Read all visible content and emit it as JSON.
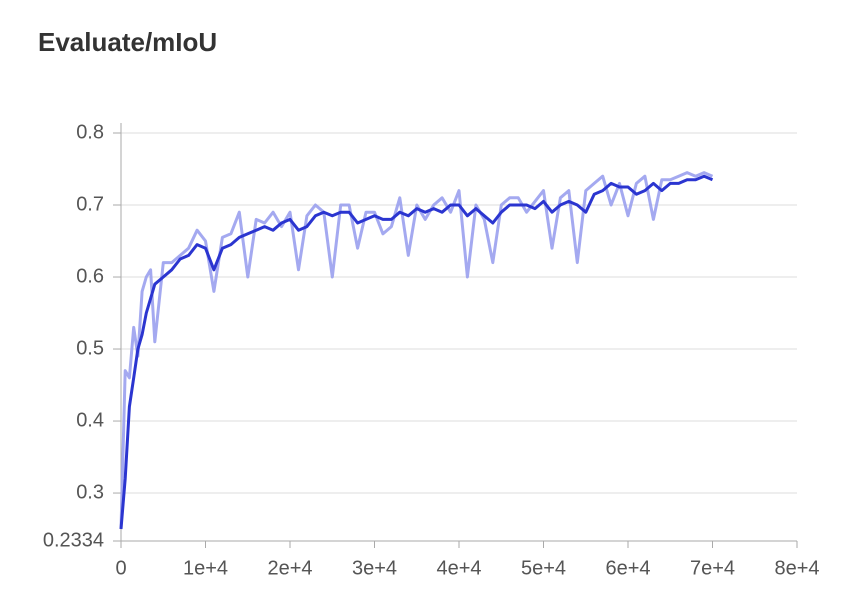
{
  "chart_data": {
    "type": "line",
    "title": "Evaluate/mIoU",
    "x": [
      0,
      500,
      1000,
      1500,
      2000,
      2500,
      3000,
      3500,
      4000,
      5000,
      6000,
      7000,
      8000,
      9000,
      10000,
      11000,
      12000,
      13000,
      14000,
      15000,
      16000,
      17000,
      18000,
      19000,
      20000,
      21000,
      22000,
      23000,
      24000,
      25000,
      26000,
      27000,
      28000,
      29000,
      30000,
      31000,
      32000,
      33000,
      34000,
      35000,
      36000,
      37000,
      38000,
      39000,
      40000,
      41000,
      42000,
      43000,
      44000,
      45000,
      46000,
      47000,
      48000,
      49000,
      50000,
      51000,
      52000,
      53000,
      54000,
      55000,
      56000,
      57000,
      58000,
      59000,
      60000,
      61000,
      62000,
      63000,
      64000,
      65000,
      66000,
      67000,
      68000,
      69000,
      70000
    ],
    "series": [
      {
        "color": "#9aa0ee",
        "values": [
          0.25,
          0.47,
          0.46,
          0.53,
          0.49,
          0.58,
          0.6,
          0.61,
          0.51,
          0.62,
          0.62,
          0.63,
          0.64,
          0.665,
          0.65,
          0.58,
          0.655,
          0.66,
          0.69,
          0.6,
          0.68,
          0.675,
          0.69,
          0.67,
          0.69,
          0.61,
          0.685,
          0.7,
          0.69,
          0.6,
          0.7,
          0.7,
          0.64,
          0.69,
          0.69,
          0.66,
          0.67,
          0.71,
          0.63,
          0.7,
          0.68,
          0.7,
          0.71,
          0.69,
          0.72,
          0.6,
          0.7,
          0.68,
          0.62,
          0.7,
          0.71,
          0.71,
          0.69,
          0.705,
          0.72,
          0.64,
          0.71,
          0.72,
          0.62,
          0.72,
          0.73,
          0.74,
          0.7,
          0.73,
          0.685,
          0.73,
          0.74,
          0.68,
          0.735,
          0.735,
          0.74,
          0.745,
          0.74,
          0.745,
          0.74
        ]
      },
      {
        "color": "#2b35d0",
        "values": [
          0.25,
          0.32,
          0.42,
          0.46,
          0.5,
          0.52,
          0.55,
          0.57,
          0.59,
          0.6,
          0.61,
          0.625,
          0.63,
          0.645,
          0.64,
          0.61,
          0.64,
          0.645,
          0.655,
          0.66,
          0.665,
          0.67,
          0.665,
          0.675,
          0.68,
          0.665,
          0.67,
          0.685,
          0.69,
          0.685,
          0.69,
          0.69,
          0.675,
          0.68,
          0.685,
          0.68,
          0.68,
          0.69,
          0.685,
          0.695,
          0.69,
          0.695,
          0.69,
          0.7,
          0.7,
          0.685,
          0.695,
          0.685,
          0.675,
          0.69,
          0.7,
          0.7,
          0.7,
          0.695,
          0.705,
          0.69,
          0.7,
          0.705,
          0.7,
          0.69,
          0.715,
          0.72,
          0.73,
          0.725,
          0.725,
          0.715,
          0.72,
          0.73,
          0.72,
          0.73,
          0.73,
          0.735,
          0.735,
          0.74,
          0.735
        ]
      }
    ],
    "xlim": [
      0,
      80000
    ],
    "xticks": [
      0,
      {
        "value": 10000,
        "label": "1e+4"
      },
      {
        "value": 20000,
        "label": "2e+4"
      },
      {
        "value": 30000,
        "label": "3e+4"
      },
      {
        "value": 40000,
        "label": "4e+4"
      },
      {
        "value": 50000,
        "label": "5e+4"
      },
      {
        "value": 60000,
        "label": "6e+4"
      },
      {
        "value": 70000,
        "label": "7e+4"
      },
      {
        "value": 80000,
        "label": "8e+4"
      }
    ],
    "ylim": [
      0.2334,
      0.8
    ],
    "yticks": [
      0.2334,
      0.3,
      0.4,
      0.5,
      0.6,
      0.7,
      0.8
    ],
    "grid": true
  }
}
